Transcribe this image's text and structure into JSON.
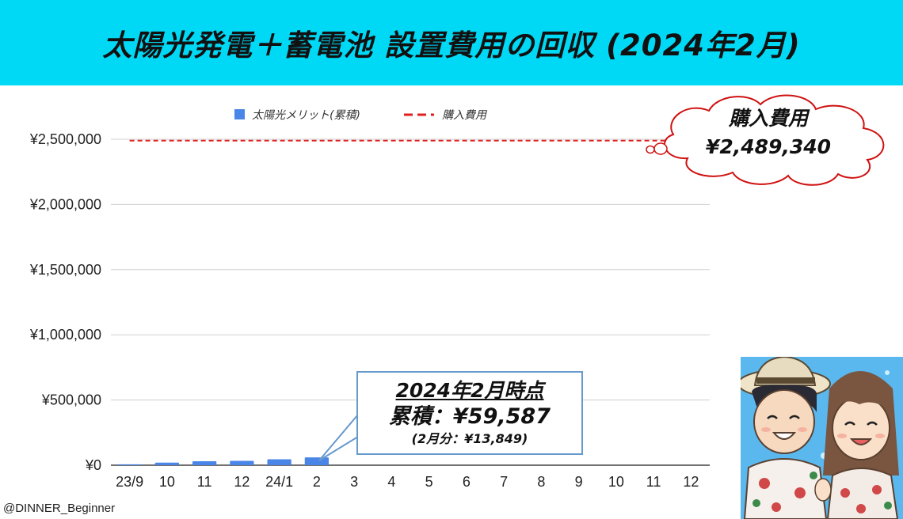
{
  "title": "太陽光発電＋蓄電池 設置費用の回収 (2024年2月)",
  "chart_data": {
    "type": "bar",
    "categories": [
      "23/9",
      "10",
      "11",
      "12",
      "24/1",
      "2",
      "3",
      "4",
      "5",
      "6",
      "7",
      "8",
      "9",
      "10",
      "11",
      "12"
    ],
    "series": [
      {
        "name": "太陽光メリット(累積)",
        "type": "bar",
        "color": "#4a86e8",
        "values": [
          7000,
          20000,
          30000,
          33000,
          45738,
          59587,
          null,
          null,
          null,
          null,
          null,
          null,
          null,
          null,
          null,
          null
        ]
      },
      {
        "name": "購入費用",
        "type": "dashed-line",
        "color": "#e02020",
        "value": 2489340
      }
    ],
    "y_ticks": [
      "¥0",
      "¥500,000",
      "¥1,000,000",
      "¥1,500,000",
      "¥2,000,000",
      "¥2,500,000"
    ],
    "ylim": [
      0,
      2500000
    ],
    "grid": true,
    "legend_position": "top"
  },
  "cloud": {
    "line1": "購入費用",
    "line2": "¥2,489,340"
  },
  "callout": {
    "line1": "2024年2月時点",
    "line2": "累積：¥59,587",
    "line3": "(2月分：¥13,849)"
  },
  "credit": "@DINNER_Beginner",
  "colors": {
    "title_bg": "#00d9f5",
    "bar": "#4a86e8",
    "cost_line": "#e02020",
    "callout_border": "#6699cc"
  },
  "illustration": {
    "icon": "couple-avatar-icon"
  }
}
